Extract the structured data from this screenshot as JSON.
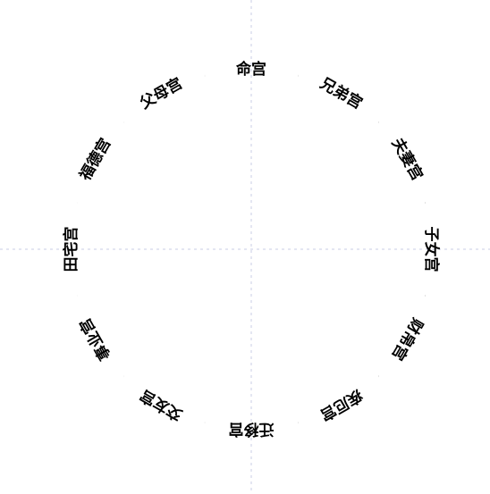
{
  "palaces": [
    "命宫",
    "兄弟宫",
    "夫妻宫",
    "子女宫",
    "财帛宫",
    "疾厄宫",
    "迁移宫",
    "交友宫",
    "事业宫",
    "田宅宫",
    "福德宫",
    "父母宫"
  ],
  "colors": {
    "ring": "#000000",
    "text": "#000000",
    "guide": "#c9cce6",
    "background": "#ffffff"
  }
}
